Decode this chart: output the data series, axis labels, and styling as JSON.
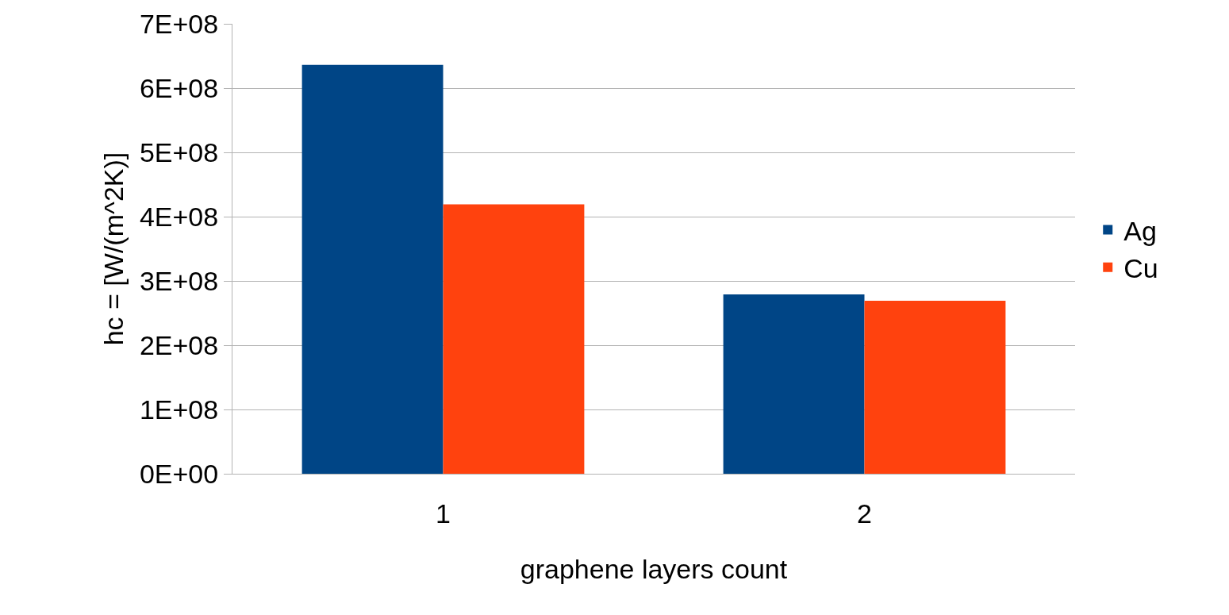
{
  "chart_data": {
    "type": "bar",
    "xlabel": "graphene layers count",
    "ylabel": "hc = [W/(m^2K)]",
    "categories": [
      "1",
      "2"
    ],
    "series": [
      {
        "name": "Ag",
        "color": "#004586",
        "values": [
          636000000,
          279000000
        ]
      },
      {
        "name": "Cu",
        "color": "#ff420e",
        "values": [
          419000000,
          269000000
        ]
      }
    ],
    "ylim": [
      0,
      700000000
    ],
    "yticks": [
      {
        "value": 0,
        "label": "0E+00"
      },
      {
        "value": 100000000,
        "label": "1E+08"
      },
      {
        "value": 200000000,
        "label": "2E+08"
      },
      {
        "value": 300000000,
        "label": "3E+08"
      },
      {
        "value": 400000000,
        "label": "4E+08"
      },
      {
        "value": 500000000,
        "label": "5E+08"
      },
      {
        "value": 600000000,
        "label": "6E+08"
      },
      {
        "value": 700000000,
        "label": "7E+08"
      }
    ],
    "grid": "y",
    "legend": "right"
  }
}
